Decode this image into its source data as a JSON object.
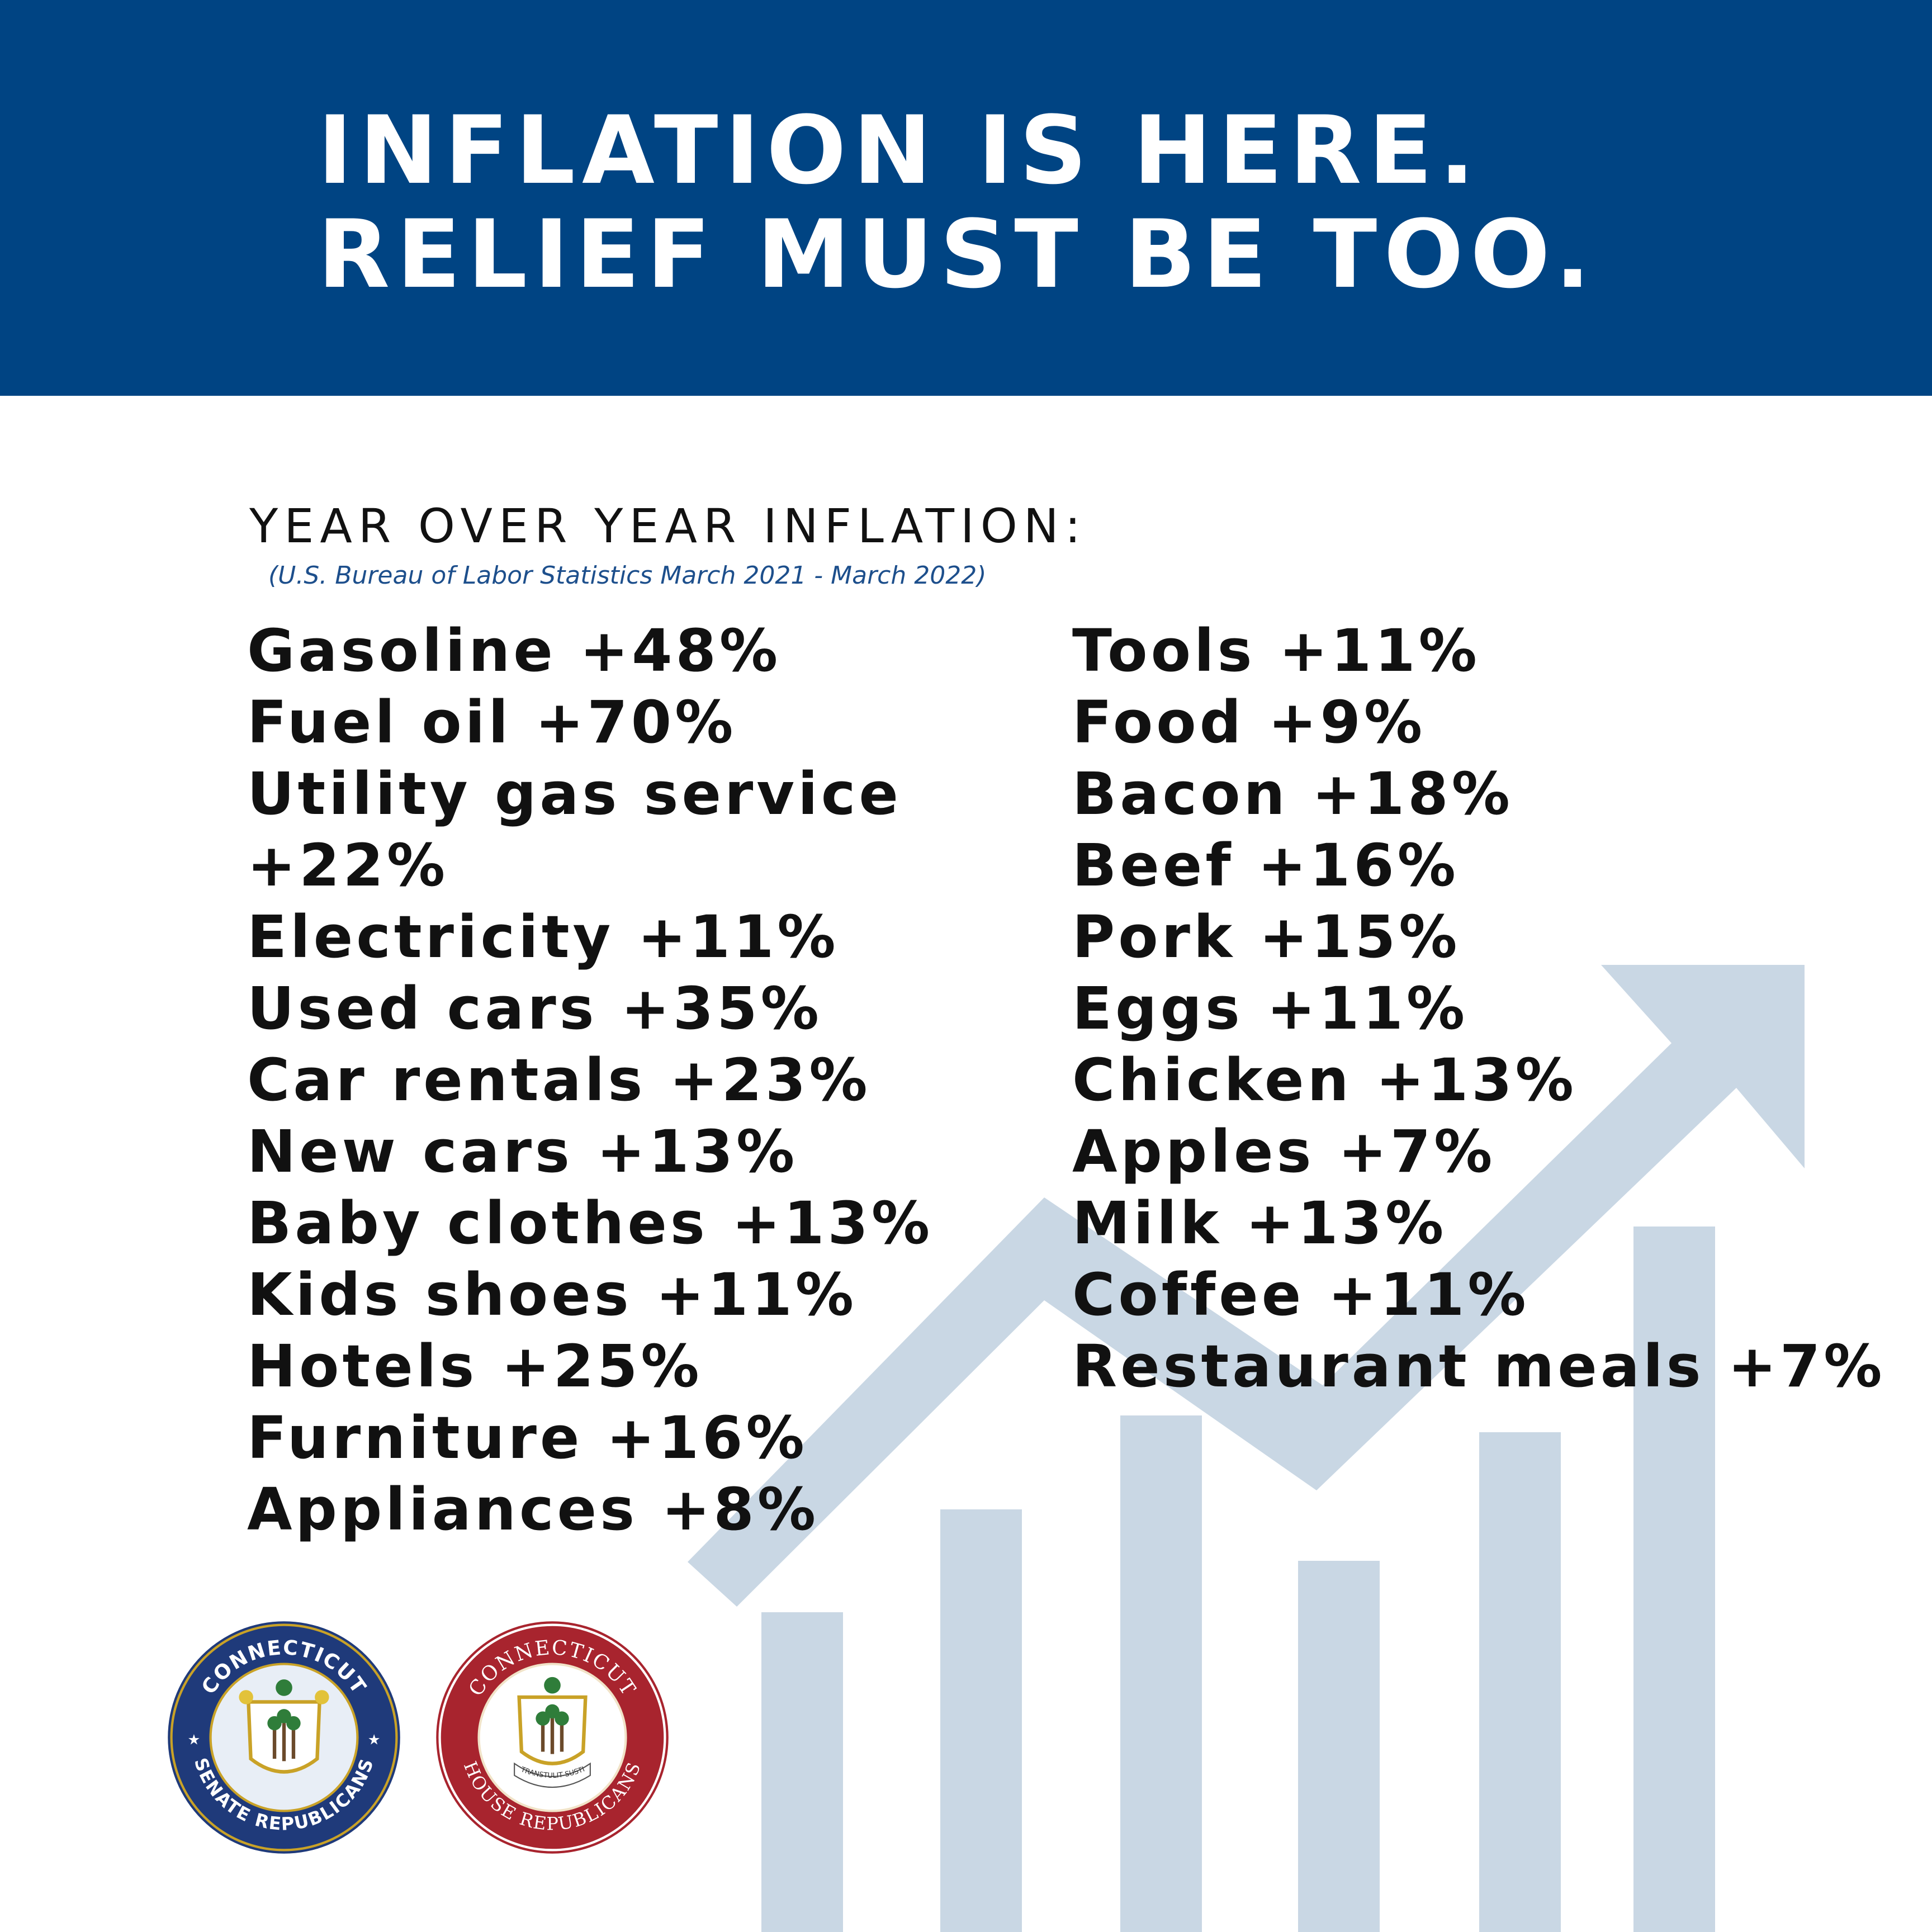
{
  "headline": {
    "line1": "INFLATION IS HERE.",
    "line2": "RELIEF MUST BE TOO."
  },
  "section_title": "YEAR OVER YEAR INFLATION:",
  "source_note": "(U.S. Bureau of Labor Statistics March 2021 - March 2022)",
  "left_items": [
    "Gasoline +48%",
    "Fuel oil +70%",
    "Utility gas service",
    "+22%",
    "Electricity +11%",
    "Used cars +35%",
    "Car rentals +23%",
    "New cars +13%",
    "Baby clothes +13%",
    "Kids shoes +11%",
    "Hotels +25%",
    "Furniture +16%",
    "Appliances +8%"
  ],
  "right_items": [
    "Tools +11%",
    "Food +9%",
    "Bacon +18%",
    "Beef +16%",
    "Pork +15%",
    "Eggs +11%",
    "Chicken +13%",
    "Apples +7%",
    "Milk +13%",
    "Coffee +11%",
    "Restaurant meals +7%"
  ],
  "logos": {
    "senate": {
      "top_text": "CONNECTICUT",
      "bottom_text": "SENATE REPUBLICANS",
      "ring_color": "#1f3a7a"
    },
    "house": {
      "top_text": "CONNECTICUT",
      "bottom_text": "HOUSE REPUBLICANS",
      "motto": "QUI TRANSTULIT SUSTINET",
      "ring_color": "#a8242e"
    }
  },
  "colors": {
    "banner": "#004483",
    "graphic": "#c9d7e4",
    "source_text": "#1d4f8c"
  }
}
